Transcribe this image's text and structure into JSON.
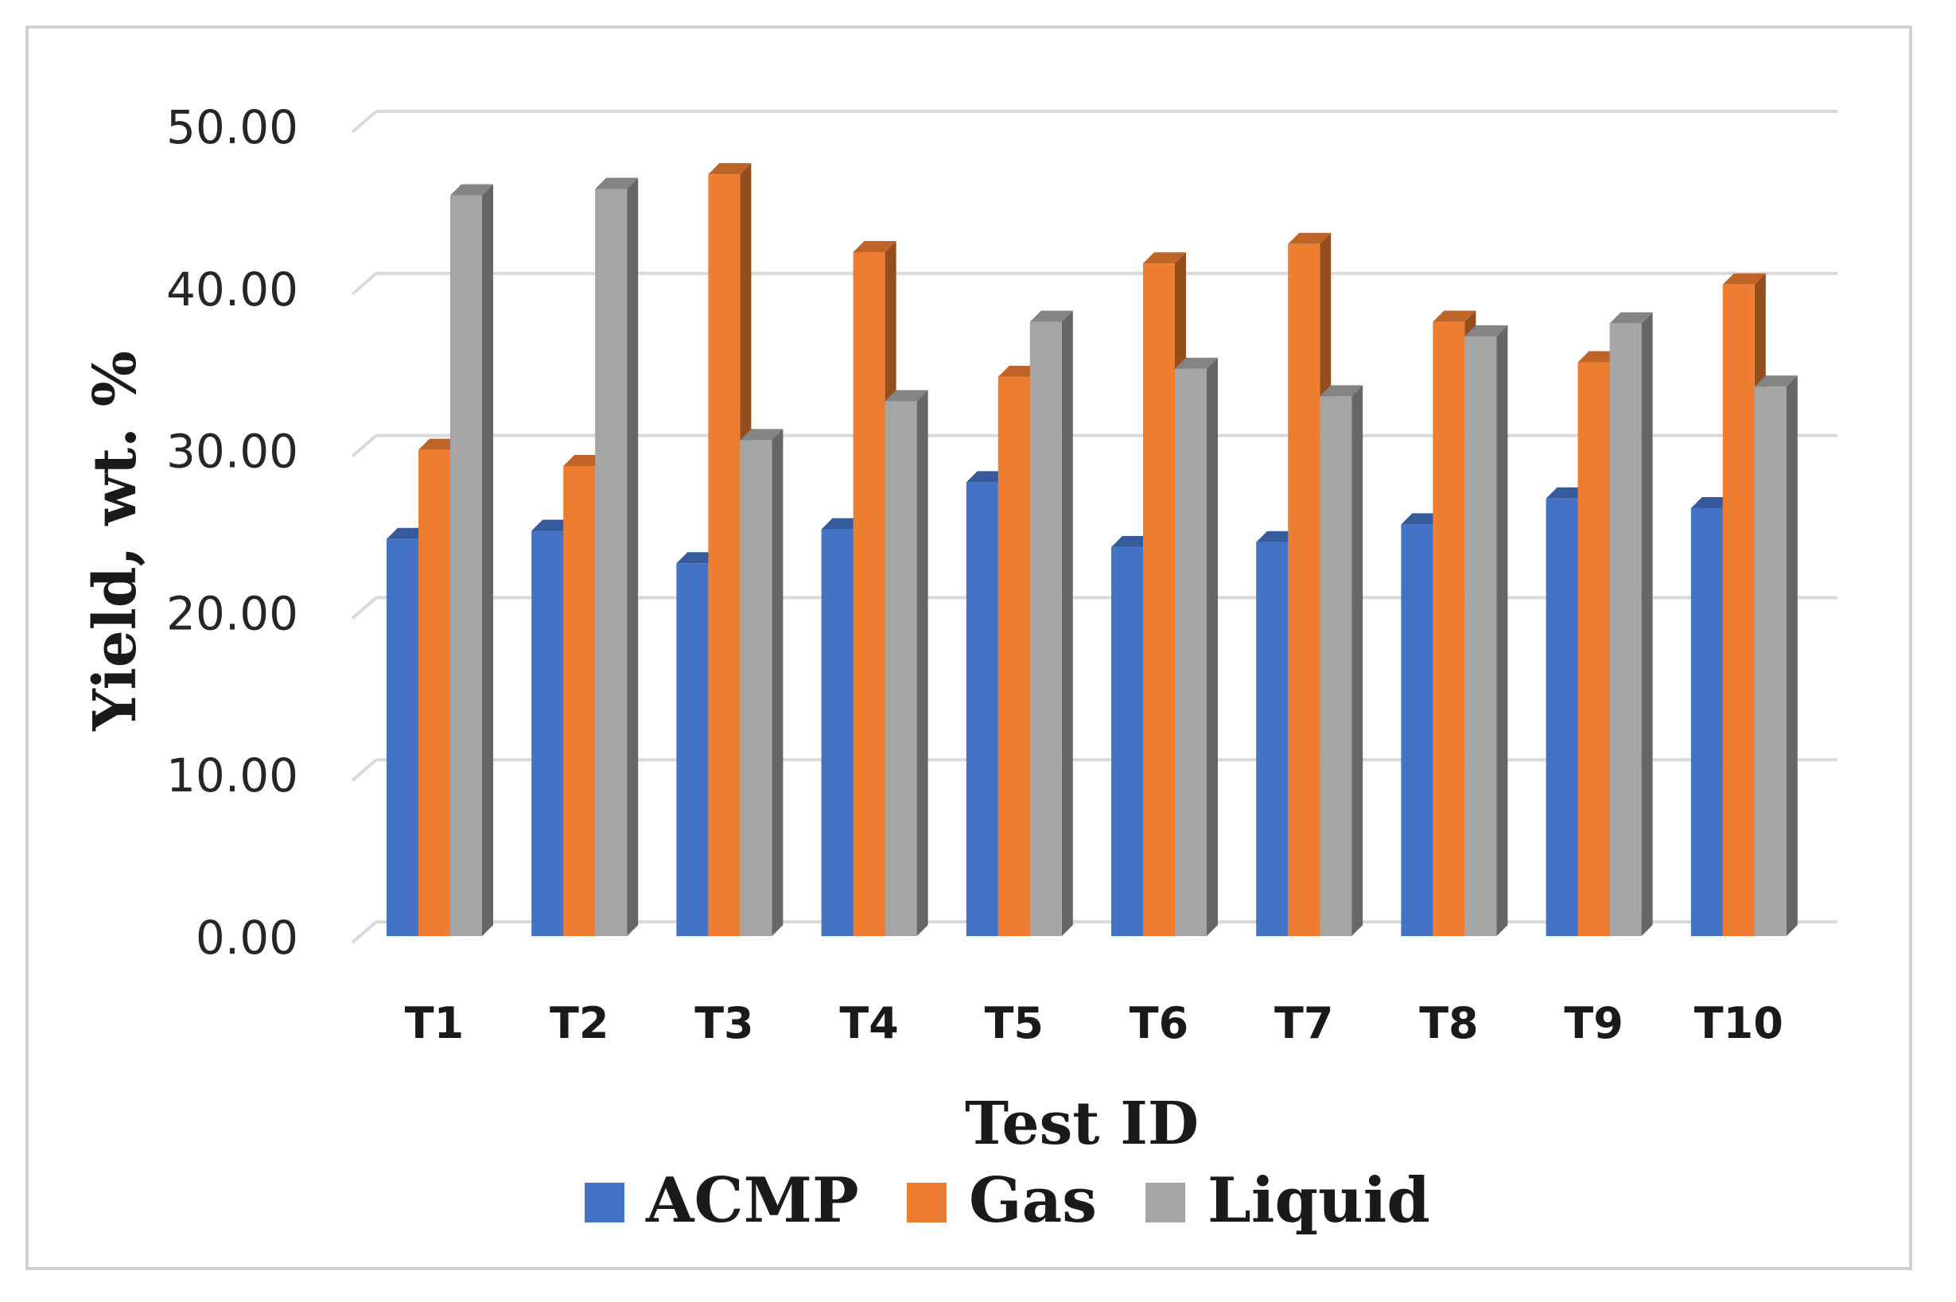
{
  "chart_data": {
    "type": "bar",
    "style": "3d-clustered-column",
    "title": "",
    "xlabel": "Test ID",
    "ylabel": "Yield, wt. %",
    "ylim": [
      0,
      50
    ],
    "y_ticks": [
      "0.00",
      "10.00",
      "20.00",
      "30.00",
      "40.00",
      "50.00"
    ],
    "grid": true,
    "legend_position": "bottom",
    "categories": [
      "T1",
      "T2",
      "T3",
      "T4",
      "T5",
      "T6",
      "T7",
      "T8",
      "T9",
      "T10"
    ],
    "series": [
      {
        "name": "ACMP",
        "color": "#4472C4",
        "values": [
          24.5,
          25.0,
          23.0,
          25.1,
          28.0,
          24.0,
          24.3,
          25.4,
          27.0,
          26.4
        ]
      },
      {
        "name": "Gas",
        "color": "#ED7D31",
        "values": [
          30.0,
          29.0,
          47.0,
          42.2,
          34.5,
          41.5,
          42.7,
          37.9,
          35.4,
          40.2
        ]
      },
      {
        "name": "Liquid",
        "color": "#A5A5A5",
        "values": [
          45.7,
          46.1,
          30.6,
          33.0,
          37.9,
          35.0,
          33.3,
          37.0,
          37.8,
          33.9
        ]
      }
    ]
  }
}
